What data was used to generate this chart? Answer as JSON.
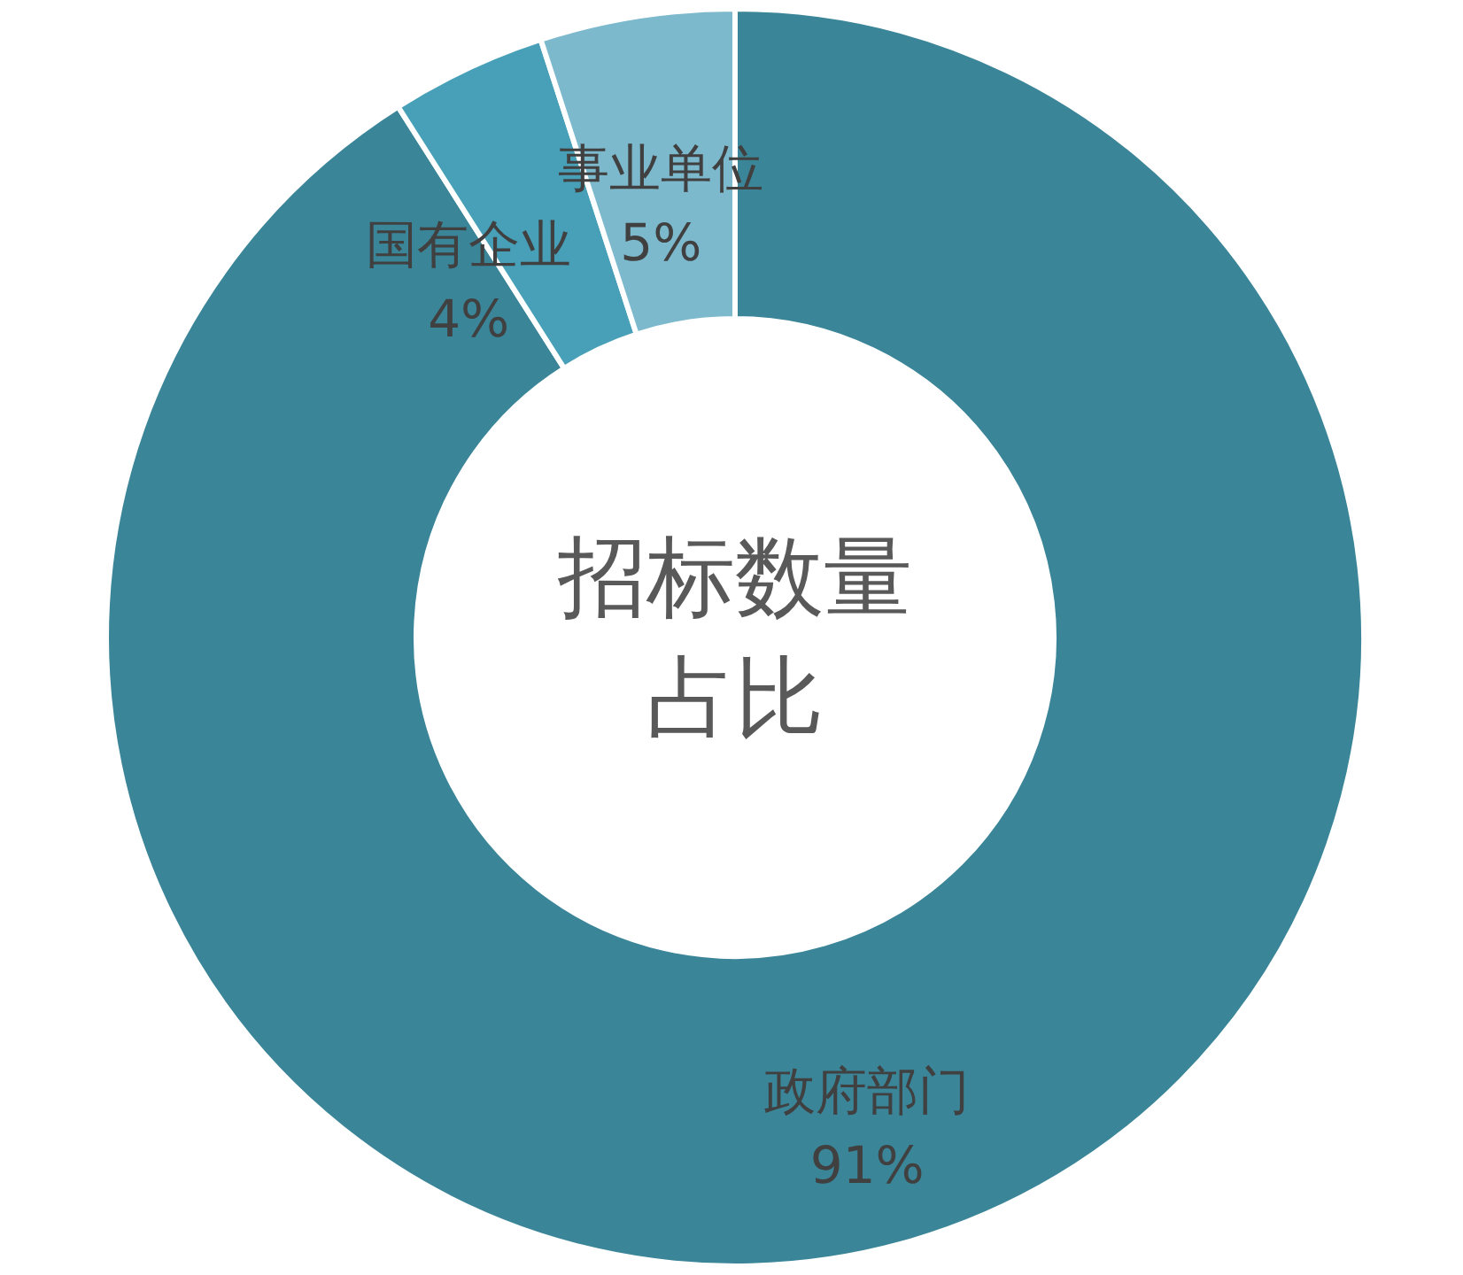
{
  "chart_data": {
    "type": "donut",
    "title": "招标数量占比",
    "categories": [
      "政府部门",
      "国有企业",
      "事业单位"
    ],
    "values": [
      91,
      4,
      5
    ],
    "colors": [
      "#3b8598",
      "#47a0b7",
      "#7db9cd"
    ],
    "value_labels": [
      "91%",
      "4%",
      "5%"
    ]
  }
}
